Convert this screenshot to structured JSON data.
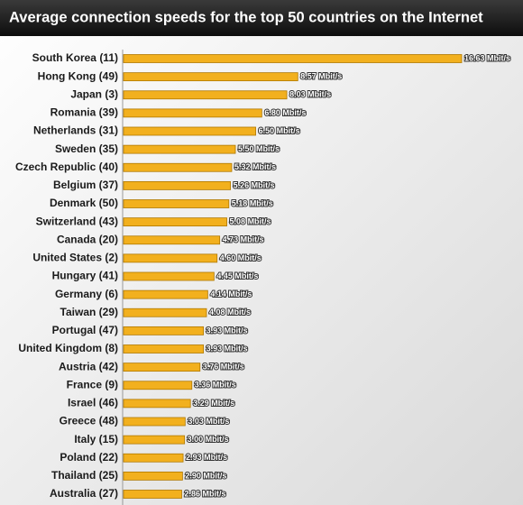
{
  "chart_data": {
    "type": "bar",
    "orientation": "horizontal",
    "title": "Average connection speeds for the top 50 countries on the Internet",
    "categories": [
      "South Korea (11)",
      "Hong Kong (49)",
      "Japan (3)",
      "Romania (39)",
      "Netherlands (31)",
      "Sweden (35)",
      "Czech Republic (40)",
      "Belgium (37)",
      "Denmark (50)",
      "Switzerland (43)",
      "Canada (20)",
      "United States (2)",
      "Hungary (41)",
      "Germany (6)",
      "Taiwan (29)",
      "Portugal (47)",
      "United Kingdom (8)",
      "Austria (42)",
      "France (9)",
      "Israel (46)",
      "Greece (48)",
      "Italy (15)",
      "Poland (22)",
      "Thailand (25)",
      "Australia (27)"
    ],
    "values": [
      16.63,
      8.57,
      8.03,
      6.8,
      6.5,
      5.5,
      5.32,
      5.26,
      5.18,
      5.08,
      4.73,
      4.6,
      4.45,
      4.14,
      4.08,
      3.93,
      3.93,
      3.76,
      3.36,
      3.29,
      3.03,
      3.0,
      2.93,
      2.9,
      2.86
    ],
    "value_labels": [
      "16.63 Mbit/s",
      "8.57 Mbit/s",
      "8.03 Mbit/s",
      "6.80 Mbit/s",
      "6.50 Mbit/s",
      "5.50 Mbit/s",
      "5.32 Mbit/s",
      "5.26 Mbit/s",
      "5.18 Mbit/s",
      "5.08 Mbit/s",
      "4.73 Mbit/s",
      "4.60 Mbit/s",
      "4.45 Mbit/s",
      "4.14 Mbit/s",
      "4.08 Mbit/s",
      "3.93 Mbit/s",
      "3.93 Mbit/s",
      "3.76 Mbit/s",
      "3.36 Mbit/s",
      "3.29 Mbit/s",
      "3.03 Mbit/s",
      "3.00 Mbit/s",
      "2.93 Mbit/s",
      "2.90 Mbit/s",
      "2.86 Mbit/s"
    ],
    "color": "#f2b01e"
  }
}
